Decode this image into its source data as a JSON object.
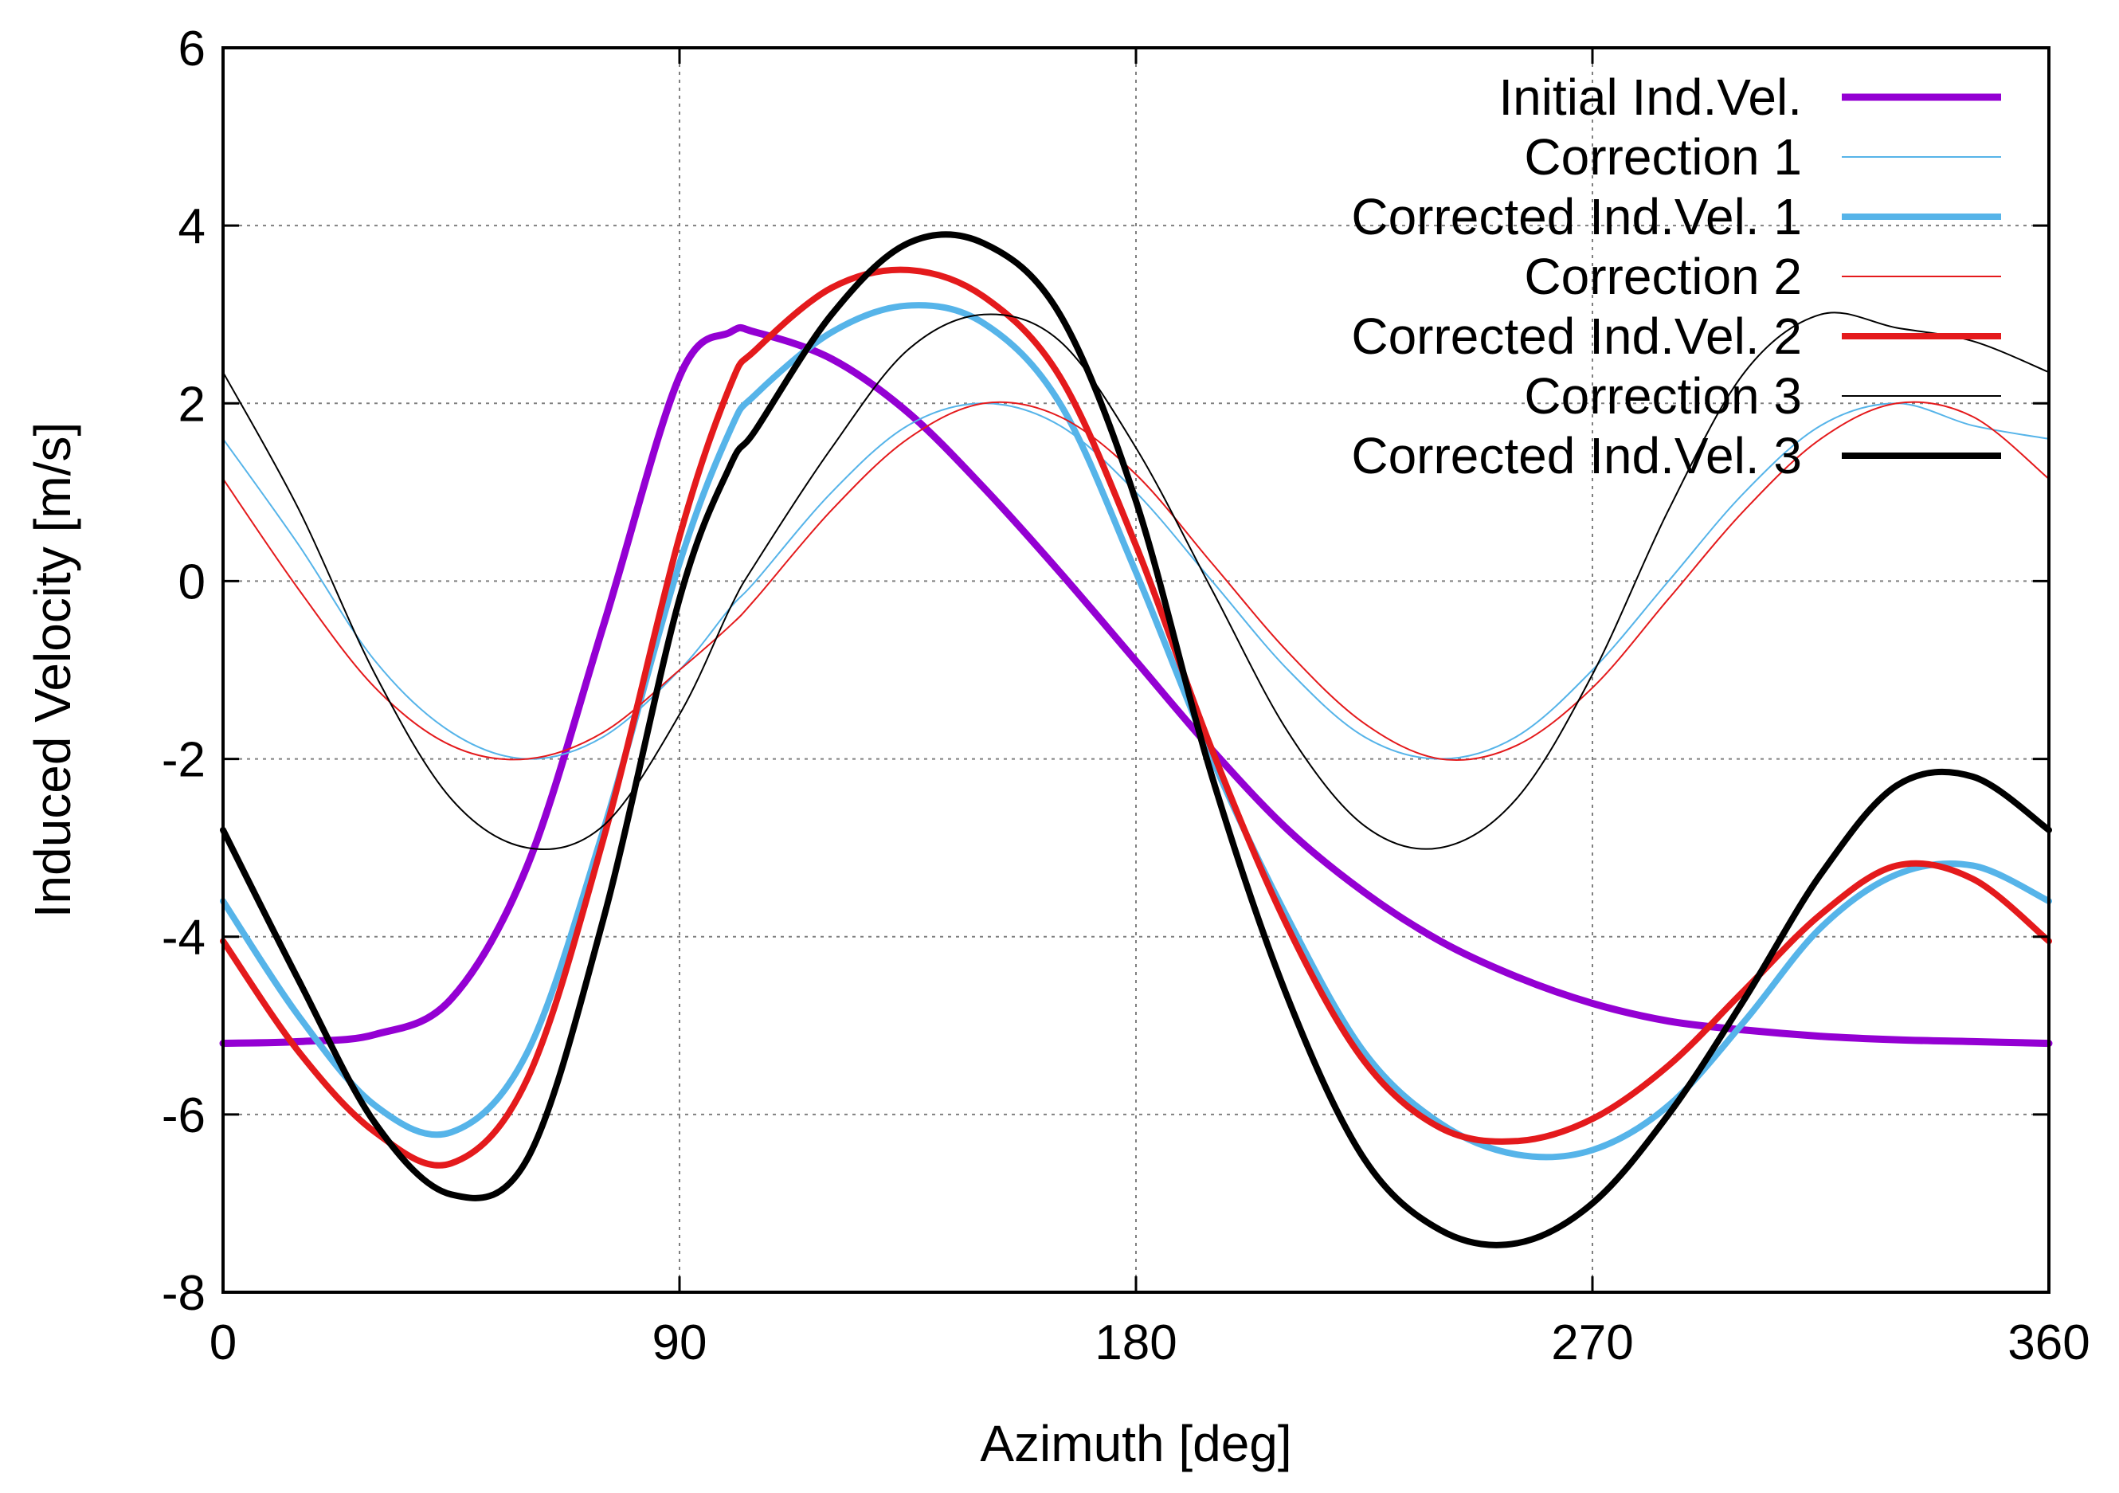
{
  "chart_data": {
    "type": "line",
    "title": "",
    "xlabel": "Azimuth [deg]",
    "ylabel": "Induced Velocity [m/s]",
    "xlim": [
      0,
      360
    ],
    "ylim": [
      -8,
      6
    ],
    "xticks": [
      0,
      90,
      180,
      270,
      360
    ],
    "xtick_labels": [
      "0",
      "90",
      "180",
      "270",
      "360"
    ],
    "yticks": [
      -8,
      -6,
      -4,
      -2,
      0,
      2,
      4,
      6
    ],
    "ytick_labels": [
      "-8",
      "-6",
      "-4",
      "-2",
      "0",
      "2",
      "4",
      "6"
    ],
    "grid": true,
    "legend_position": "top-right",
    "x": [
      0,
      15,
      30,
      45,
      60,
      75,
      90,
      100,
      105,
      120,
      135,
      150,
      165,
      180,
      195,
      210,
      225,
      240,
      255,
      270,
      285,
      300,
      315,
      330,
      345,
      360
    ],
    "series": [
      {
        "name": "Initial Ind.Vel.",
        "color": "#9400d3",
        "width": 9,
        "values": [
          -5.2,
          -5.18,
          -5.1,
          -4.7,
          -3.2,
          -0.5,
          2.3,
          2.8,
          2.8,
          2.5,
          1.9,
          1.05,
          0.1,
          -0.9,
          -1.9,
          -2.8,
          -3.5,
          -4.05,
          -4.45,
          -4.75,
          -4.95,
          -5.05,
          -5.12,
          -5.16,
          -5.18,
          -5.2
        ]
      },
      {
        "name": "Correction 1",
        "color": "#56b4e9",
        "width": 2,
        "values": [
          1.6,
          0.4,
          -0.9,
          -1.7,
          -2.0,
          -1.75,
          -1.0,
          -0.3,
          0.0,
          1.0,
          1.75,
          2.0,
          1.75,
          1.0,
          0.0,
          -1.0,
          -1.75,
          -2.0,
          -1.75,
          -1.0,
          0.0,
          1.0,
          1.75,
          2.0,
          1.75,
          1.6
        ]
      },
      {
        "name": "Corrected Ind.Vel. 1",
        "color": "#56b4e9",
        "width": 8,
        "values": [
          -3.6,
          -4.9,
          -5.9,
          -6.2,
          -5.3,
          -2.8,
          0.2,
          1.7,
          2.1,
          2.8,
          3.1,
          2.9,
          2.0,
          0.1,
          -2.0,
          -3.8,
          -5.3,
          -6.1,
          -6.45,
          -6.4,
          -5.9,
          -4.95,
          -3.9,
          -3.3,
          -3.2,
          -3.6
        ]
      },
      {
        "name": "Correction 2",
        "color": "#e41a1c",
        "width": 2,
        "values": [
          1.15,
          -0.1,
          -1.2,
          -1.85,
          -2.0,
          -1.7,
          -1.0,
          -0.5,
          -0.2,
          0.8,
          1.6,
          2.0,
          1.85,
          1.2,
          0.2,
          -0.8,
          -1.6,
          -2.0,
          -1.85,
          -1.2,
          -0.2,
          0.8,
          1.6,
          2.0,
          1.85,
          1.15
        ]
      },
      {
        "name": "Corrected Ind.Vel. 2",
        "color": "#e41a1c",
        "width": 8,
        "values": [
          -4.05,
          -5.3,
          -6.2,
          -6.55,
          -5.6,
          -2.9,
          0.5,
          2.2,
          2.6,
          3.3,
          3.5,
          3.2,
          2.3,
          0.4,
          -1.9,
          -3.9,
          -5.4,
          -6.15,
          -6.3,
          -6.05,
          -5.45,
          -4.6,
          -3.75,
          -3.2,
          -3.35,
          -4.05
        ]
      },
      {
        "name": "Correction 3",
        "color": "#000000",
        "width": 2,
        "values": [
          2.35,
          0.8,
          -1.05,
          -2.45,
          -3.0,
          -2.75,
          -1.5,
          -0.3,
          0.2,
          1.5,
          2.6,
          3.0,
          2.7,
          1.5,
          -0.1,
          -1.7,
          -2.75,
          -3.0,
          -2.45,
          -1.05,
          0.8,
          2.35,
          3.0,
          2.85,
          2.7,
          2.35
        ]
      },
      {
        "name": "Corrected Ind.Vel. 3",
        "color": "#000000",
        "width": 8,
        "values": [
          -2.8,
          -4.5,
          -6.1,
          -6.9,
          -6.5,
          -3.8,
          -0.2,
          1.3,
          1.7,
          3.0,
          3.8,
          3.8,
          3.0,
          0.9,
          -2.2,
          -4.7,
          -6.5,
          -7.3,
          -7.45,
          -7.0,
          -6.0,
          -4.7,
          -3.3,
          -2.3,
          -2.2,
          -2.8
        ]
      }
    ]
  }
}
